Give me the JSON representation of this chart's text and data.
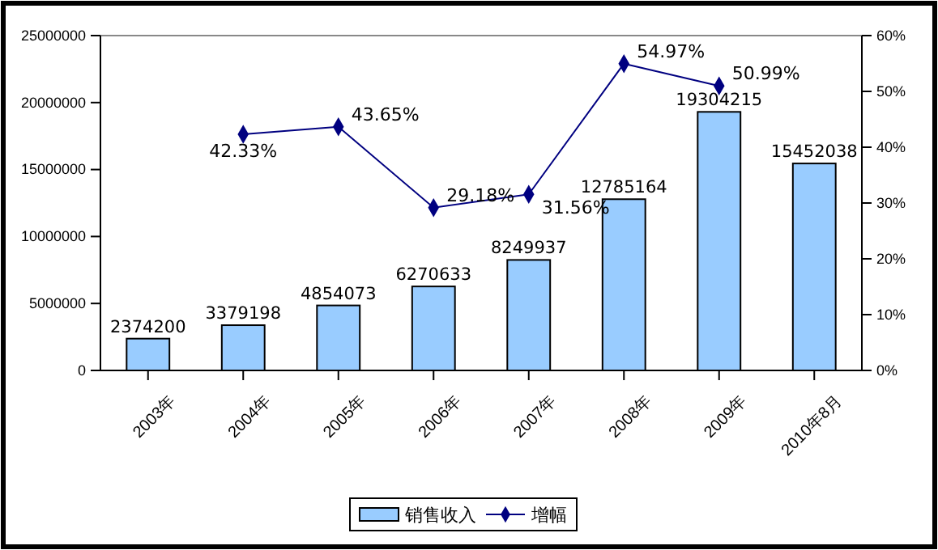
{
  "chart_data": {
    "type": "bar",
    "categories": [
      "2003年",
      "2004年",
      "2005年",
      "2006年",
      "2007年",
      "2008年",
      "2009年",
      "2010年8月"
    ],
    "series": [
      {
        "name": "销售收入",
        "color": "#99ccff",
        "values": [
          2374200,
          3379198,
          4854073,
          6270633,
          8249937,
          12785164,
          19304215,
          15452038
        ],
        "data_labels": true
      },
      {
        "name": "增幅",
        "type": "line",
        "axis": "y2",
        "color": "#000080",
        "marker": "diamond",
        "values": [
          null,
          42.33,
          43.65,
          29.18,
          31.56,
          54.97,
          50.99,
          null
        ],
        "value_labels": [
          null,
          "42.33%",
          "43.65%",
          "29.18%",
          "31.56%",
          "54.97%",
          "50.99%",
          null
        ]
      }
    ],
    "ylim": [
      0,
      25000000
    ],
    "yticks": [
      0,
      5000000,
      10000000,
      15000000,
      20000000,
      25000000
    ],
    "y2lim": [
      0,
      60
    ],
    "y2ticks": [
      {
        "value": 0,
        "label": "0%"
      },
      {
        "value": 10,
        "label": "10%"
      },
      {
        "value": 20,
        "label": "20%"
      },
      {
        "value": 30,
        "label": "30%"
      },
      {
        "value": 40,
        "label": "40%"
      },
      {
        "value": 50,
        "label": "50%"
      },
      {
        "value": 60,
        "label": "60%"
      }
    ],
    "legend": "bottom",
    "grid": false
  }
}
